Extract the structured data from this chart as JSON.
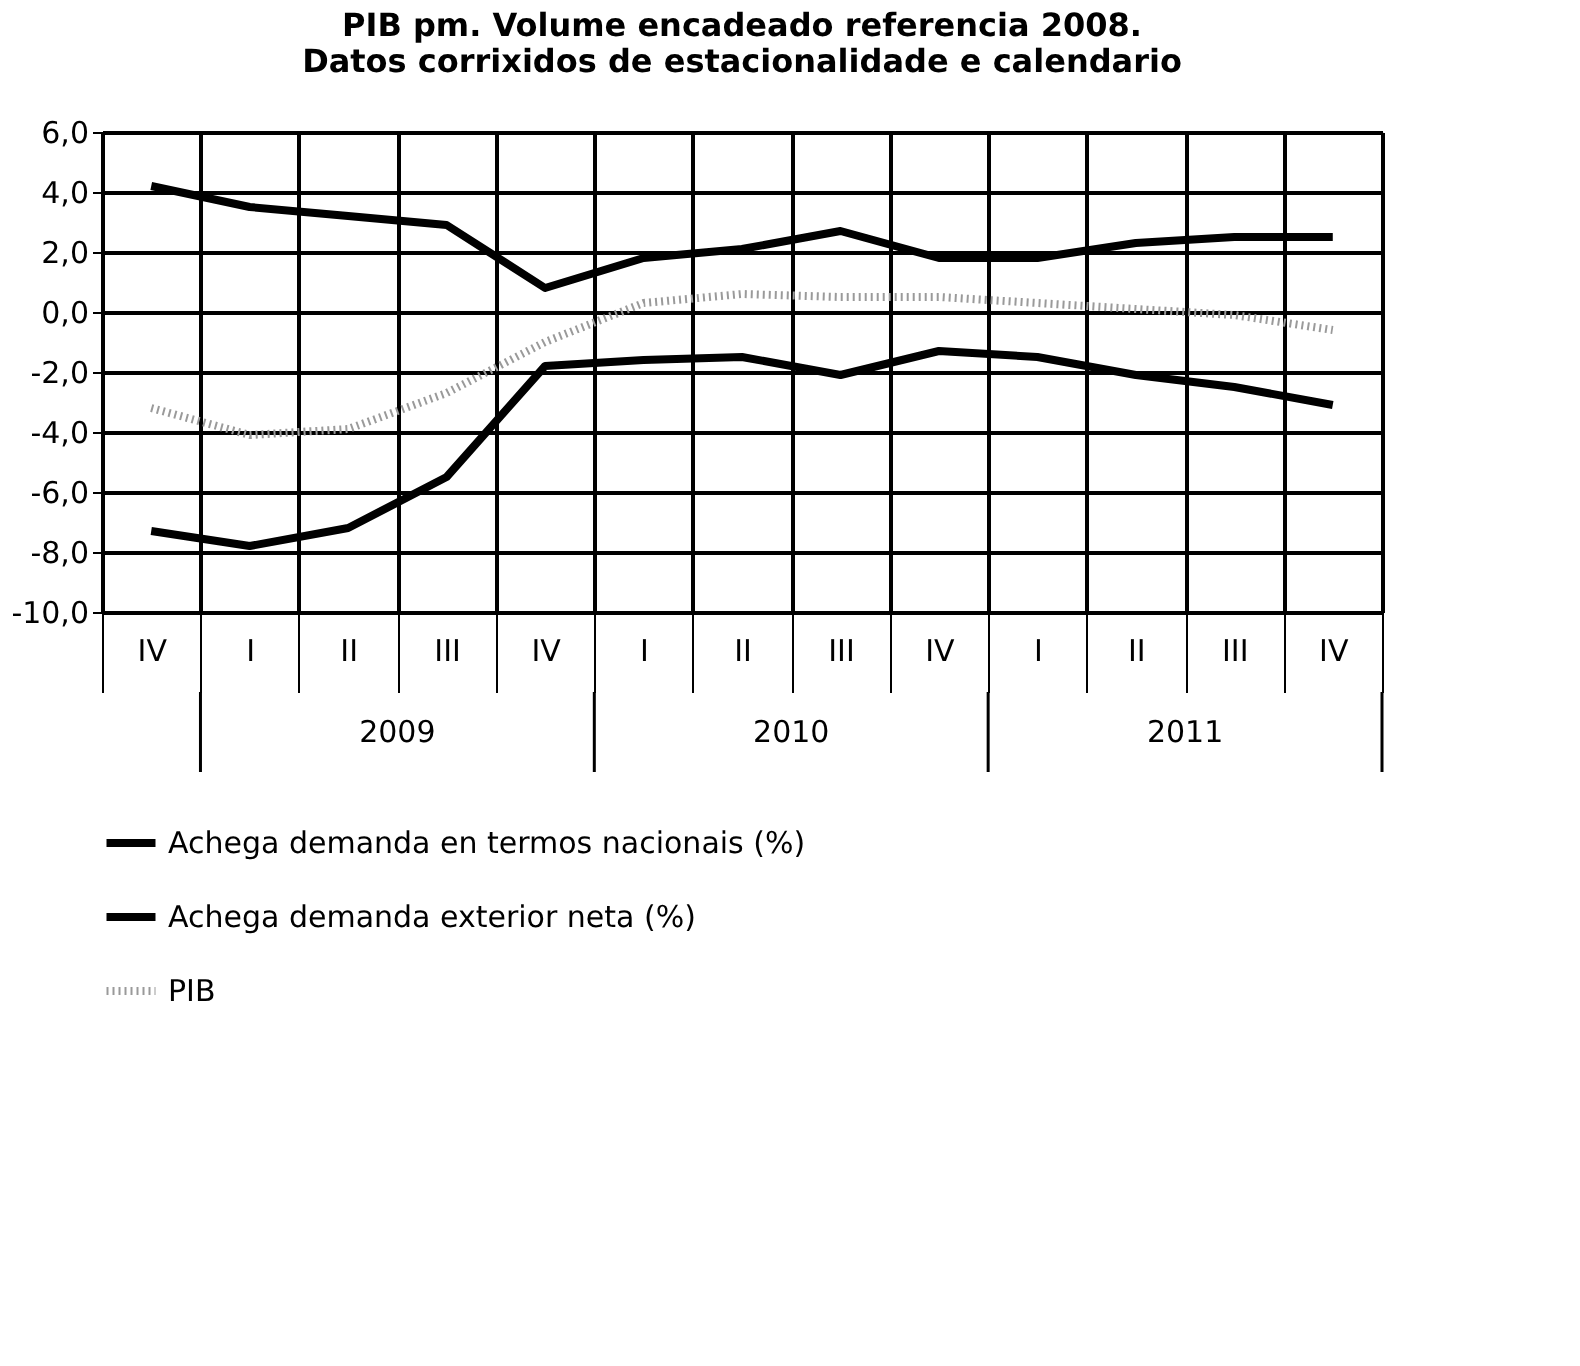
{
  "chart_data": {
    "type": "line",
    "title": "PIB pm. Volume encadeado referencia 2008.\nDatos corrixidos de estacionalidade e calendario",
    "categories": [
      "IV",
      "I",
      "II",
      "III",
      "IV",
      "I",
      "II",
      "III",
      "IV",
      "I",
      "II",
      "III",
      "IV"
    ],
    "annotations": [
      "2009",
      "2010",
      "2011"
    ],
    "series": [
      {
        "name": "Achega demanda en termos nacionais (%)",
        "color": "#000000",
        "line_style": "solid",
        "values": [
          4.2,
          3.5,
          3.2,
          2.9,
          0.8,
          1.8,
          2.1,
          2.7,
          1.8,
          1.8,
          2.3,
          2.5,
          2.5
        ]
      },
      {
        "name": "Achega demanda exterior neta (%)",
        "color": "#000000",
        "line_style": "solid",
        "values": [
          -7.3,
          -7.8,
          -7.2,
          -5.5,
          -1.8,
          -1.6,
          -1.5,
          -2.1,
          -1.3,
          -1.5,
          -2.1,
          -2.5,
          -3.1
        ]
      },
      {
        "name": "PIB",
        "color": "#9a9a9a",
        "line_style": "dotted",
        "values": [
          -3.2,
          -4.1,
          -3.9,
          -2.7,
          -1.0,
          0.3,
          0.6,
          0.5,
          0.5,
          0.3,
          0.1,
          -0.1,
          -0.6
        ]
      }
    ],
    "ylim": [
      -10,
      6
    ],
    "yticks": [
      {
        "value": -10,
        "label": "-10,0"
      },
      {
        "value": -8,
        "label": "-8,0"
      },
      {
        "value": -6,
        "label": "-6,0"
      },
      {
        "value": -4,
        "label": "-4,0"
      },
      {
        "value": -2,
        "label": "-2,0"
      },
      {
        "value": 0,
        "label": "0,0"
      },
      {
        "value": 2,
        "label": "2,0"
      },
      {
        "value": 4,
        "label": "4,0"
      },
      {
        "value": 6,
        "label": "6,0"
      }
    ],
    "grid": true,
    "legend": "bottom",
    "marker": "none"
  }
}
